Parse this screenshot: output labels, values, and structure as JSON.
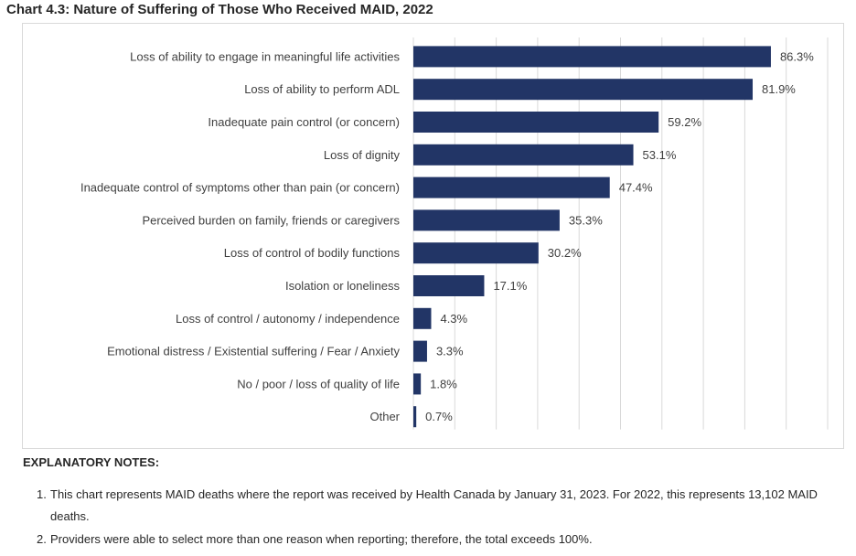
{
  "chart_data": {
    "type": "bar",
    "orientation": "horizontal",
    "title": "Chart 4.3: Nature of Suffering of Those Who Received MAID, 2022",
    "categories": [
      "Loss of ability to engage in meaningful life activities",
      "Loss of ability to perform ADL",
      "Inadequate pain control (or concern)",
      "Loss of dignity",
      "Inadequate control of symptoms other than pain (or concern)",
      "Perceived burden on family, friends or caregivers",
      "Loss of control of bodily functions",
      "Isolation or loneliness",
      "Loss of control / autonomy / independence",
      "Emotional distress / Existential suffering / Fear / Anxiety",
      "No / poor / loss of quality of life",
      "Other"
    ],
    "values": [
      86.3,
      81.9,
      59.2,
      53.1,
      47.4,
      35.3,
      30.2,
      17.1,
      4.3,
      3.3,
      1.8,
      0.7
    ],
    "data_labels": [
      "86.3%",
      "81.9%",
      "59.2%",
      "53.1%",
      "47.4%",
      "35.3%",
      "30.2%",
      "17.1%",
      "4.3%",
      "3.3%",
      "1.8%",
      "0.7%"
    ],
    "xlim": [
      0,
      100
    ],
    "grid": true,
    "bar_color": "#223566",
    "grid_color": "#d9d9d9"
  },
  "notes": {
    "heading": "EXPLANATORY NOTES:",
    "items": [
      {
        "num": "1.",
        "text": "This chart represents MAID deaths where the report was received by Health Canada by January 31, 2023. For 2022, this represents 13,102 MAID deaths."
      },
      {
        "num": "2.",
        "text": "Providers were able to select more than one reason when reporting; therefore, the total exceeds 100%."
      }
    ]
  }
}
